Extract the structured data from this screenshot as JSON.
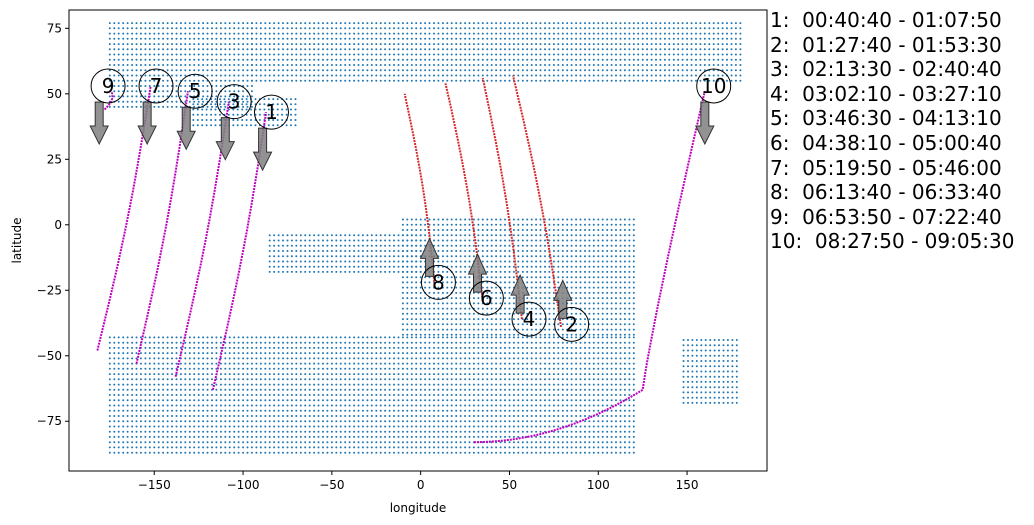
{
  "chart_data": {
    "type": "scatter",
    "title": "",
    "xlabel": "longitude",
    "ylabel": "latitude",
    "xlim": [
      -198,
      195
    ],
    "ylim": [
      -94,
      82
    ],
    "xticks": [
      -150,
      -100,
      -50,
      0,
      50,
      100,
      150
    ],
    "yticks": [
      -75,
      -50,
      -25,
      0,
      25,
      50,
      75
    ],
    "grid": false,
    "legend_placement": "right, outside plot",
    "colors": {
      "grid_points": "#1f77b4",
      "ascending_pass": "#d62728",
      "descending_pass": "#bf00bf",
      "arrow": "#7f7f7f"
    },
    "grid_point_regions": [
      {
        "lon": [
          -175,
          -95
        ],
        "lat": [
          45,
          77
        ]
      },
      {
        "lon": [
          -95,
          180
        ],
        "lat": [
          55,
          77
        ]
      },
      {
        "lon": [
          -128,
          -70
        ],
        "lat": [
          38,
          48
        ]
      },
      {
        "lon": [
          -10,
          120
        ],
        "lat": [
          -42,
          3
        ]
      },
      {
        "lon": [
          -85,
          0
        ],
        "lat": [
          -18,
          -3
        ]
      },
      {
        "lon": [
          -175,
          120
        ],
        "lat": [
          -87,
          -42
        ]
      },
      {
        "lon": [
          148,
          180
        ],
        "lat": [
          -68,
          -44
        ]
      }
    ],
    "passes": [
      {
        "id": "1",
        "time": "00:40:40 - 01:07:50",
        "color": "descending",
        "lon_start": -117,
        "lon_end": -87,
        "lat_start": -63,
        "lat_end": 43,
        "arrow": "down",
        "label_lon": -84,
        "label_lat": 43
      },
      {
        "id": "2",
        "time": "01:27:40 - 01:53:30",
        "color": "ascending",
        "lon_start": 79,
        "lon_end": 52,
        "lat_start": -39,
        "lat_end": 57,
        "arrow": "up",
        "label_lon": 85,
        "label_lat": -38
      },
      {
        "id": "3",
        "time": "02:13:30 - 02:40:40",
        "color": "descending",
        "lon_start": -138,
        "lon_end": -108,
        "lat_start": -58,
        "lat_end": 47,
        "arrow": "down",
        "label_lon": -105,
        "label_lat": 47
      },
      {
        "id": "4",
        "time": "03:02:10 - 03:27:10",
        "color": "ascending",
        "lon_start": 57,
        "lon_end": 35,
        "lat_start": -36,
        "lat_end": 56,
        "arrow": "up",
        "label_lon": 61,
        "label_lat": -36
      },
      {
        "id": "5",
        "time": "03:46:30 - 04:13:10",
        "color": "descending",
        "lon_start": -160,
        "lon_end": -131,
        "lat_start": -53,
        "lat_end": 51,
        "arrow": "down",
        "label_lon": -127,
        "label_lat": 51
      },
      {
        "id": "6",
        "time": "04:38:10 - 05:00:40",
        "color": "ascending",
        "lon_start": 35,
        "lon_end": 14,
        "lat_start": -29,
        "lat_end": 54,
        "arrow": "up",
        "label_lon": 37,
        "label_lat": -28
      },
      {
        "id": "7",
        "time": "05:19:50 - 05:46:00",
        "color": "descending",
        "lon_start": -182,
        "lon_end": -152,
        "lat_start": -48,
        "lat_end": 53,
        "arrow": "down",
        "label_lon": -149,
        "label_lat": 53
      },
      {
        "id": "8",
        "time": "06:13:40 - 06:33:40",
        "color": "ascending",
        "lon_start": 8,
        "lon_end": -9,
        "lat_start": -24,
        "lat_end": 50,
        "arrow": "up",
        "label_lon": 10,
        "label_lat": -22
      },
      {
        "id": "9",
        "time": "06:53:50 - 07:22:40",
        "color": "descending",
        "lon_start": -178,
        "lon_end": -174,
        "lat_start": 44,
        "lat_end": 51,
        "arrow": "down",
        "label_lon": -176,
        "label_lat": 53
      },
      {
        "id": "10",
        "time": "08:27:50 - 09:05:30",
        "color": "descending",
        "lon_start": 30,
        "lon_end": 160,
        "lat_start": -83,
        "lat_end": 51,
        "arrow": "down",
        "label_lon": 165,
        "label_lat": 53
      }
    ]
  },
  "legend": [
    "1:  00:40:40 - 01:07:50",
    "2:  01:27:40 - 01:53:30",
    "3:  02:13:30 - 02:40:40",
    "4:  03:02:10 - 03:27:10",
    "5:  03:46:30 - 04:13:10",
    "6:  04:38:10 - 05:00:40",
    "7:  05:19:50 - 05:46:00",
    "8:  06:13:40 - 06:33:40",
    "9:  06:53:50 - 07:22:40",
    "10:  08:27:50 - 09:05:30"
  ]
}
